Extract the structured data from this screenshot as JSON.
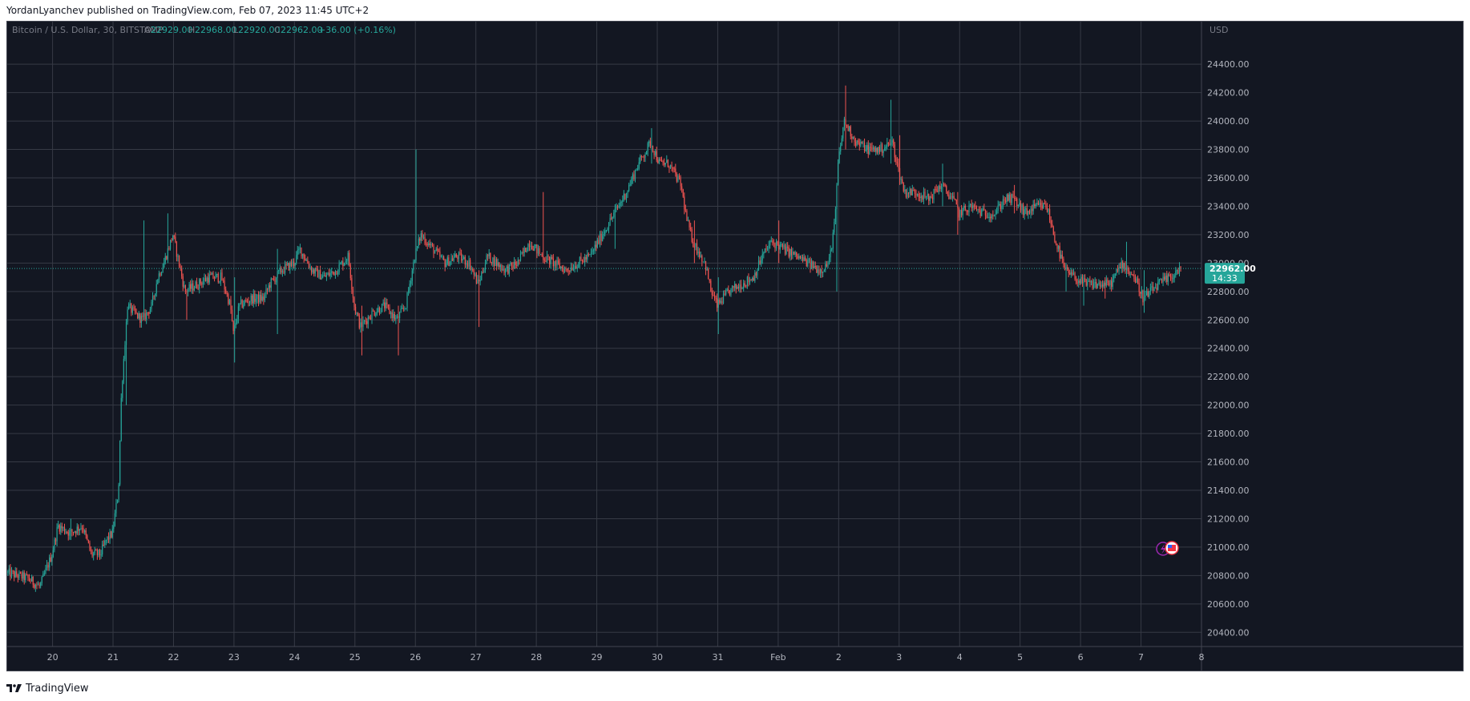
{
  "header": {
    "published_line": "YordanLyanchev published on TradingView.com, Feb 07, 2023 11:45 UTC+2"
  },
  "footer": {
    "brand": "TradingView"
  },
  "legend": {
    "symbol": "Bitcoin / U.S. Dollar, 30, BITSTAMP",
    "open_label": "O",
    "open": "22929.00",
    "high_label": "H",
    "high": "22968.00",
    "low_label": "L",
    "low": "22920.00",
    "close_label": "C",
    "close": "22962.00",
    "change": "+36.00 (+0.16%)"
  },
  "price_scale": {
    "currency": "USD",
    "last_price": "22962.00",
    "countdown": "14:33"
  },
  "colors": {
    "background": "#131722",
    "grid": "#363a45",
    "up": "#26a69a",
    "down": "#ef5350",
    "text": "#b2b5be",
    "badge": "#26a69a"
  },
  "chart_data": {
    "type": "candlestick",
    "title": "Bitcoin / U.S. Dollar, 30, BITSTAMP",
    "ylabel": "USD",
    "ylim": [
      20300,
      24700
    ],
    "y_ticks": [
      20400,
      20600,
      20800,
      21000,
      21200,
      21400,
      21600,
      21800,
      22000,
      22200,
      22400,
      22600,
      22800,
      23000,
      23200,
      23400,
      23600,
      23800,
      24000,
      24200,
      24400
    ],
    "y_tick_labels": [
      "20400.00",
      "20600.00",
      "20800.00",
      "21000.00",
      "21200.00",
      "21400.00",
      "21600.00",
      "21800.00",
      "22000.00",
      "22200.00",
      "22400.00",
      "22600.00",
      "22800.00",
      "23000.00",
      "23200.00",
      "23400.00",
      "23600.00",
      "23800.00",
      "24000.00",
      "24200.00",
      "24400.00"
    ],
    "x_range": [
      -0.75,
      19.0
    ],
    "x_ticks": [
      0,
      1,
      2,
      3,
      4,
      5,
      6,
      7,
      8,
      9,
      10,
      11,
      12,
      13,
      14,
      15,
      16,
      17,
      18,
      19
    ],
    "x_tick_labels": [
      "20",
      "21",
      "22",
      "23",
      "24",
      "25",
      "26",
      "27",
      "28",
      "29",
      "30",
      "31",
      "Feb",
      "2",
      "3",
      "4",
      "5",
      "6",
      "7",
      "8"
    ],
    "grid": true,
    "last_price": 22962.0,
    "path": [
      [
        -0.75,
        20820
      ],
      [
        -0.4,
        20780
      ],
      [
        -0.2,
        20720
      ],
      [
        0.0,
        20950
      ],
      [
        0.1,
        21150
      ],
      [
        0.3,
        21100
      ],
      [
        0.5,
        21150
      ],
      [
        0.65,
        20950
      ],
      [
        0.8,
        20950
      ],
      [
        0.9,
        21050
      ],
      [
        1.0,
        21100
      ],
      [
        1.1,
        21400
      ],
      [
        1.15,
        22100
      ],
      [
        1.25,
        22700
      ],
      [
        1.35,
        22650
      ],
      [
        1.5,
        22600
      ],
      [
        1.65,
        22700
      ],
      [
        1.75,
        22900
      ],
      [
        1.85,
        23000
      ],
      [
        2.0,
        23200
      ],
      [
        2.1,
        23000
      ],
      [
        2.2,
        22800
      ],
      [
        2.4,
        22850
      ],
      [
        2.6,
        22900
      ],
      [
        2.8,
        22900
      ],
      [
        2.95,
        22700
      ],
      [
        3.0,
        22500
      ],
      [
        3.1,
        22700
      ],
      [
        3.3,
        22750
      ],
      [
        3.5,
        22750
      ],
      [
        3.6,
        22850
      ],
      [
        3.8,
        22950
      ],
      [
        4.0,
        23000
      ],
      [
        4.1,
        23100
      ],
      [
        4.3,
        22950
      ],
      [
        4.5,
        22900
      ],
      [
        4.7,
        22950
      ],
      [
        4.9,
        23050
      ],
      [
        5.0,
        22700
      ],
      [
        5.1,
        22550
      ],
      [
        5.3,
        22650
      ],
      [
        5.5,
        22700
      ],
      [
        5.7,
        22600
      ],
      [
        5.85,
        22700
      ],
      [
        6.0,
        23050
      ],
      [
        6.1,
        23200
      ],
      [
        6.3,
        23100
      ],
      [
        6.5,
        23000
      ],
      [
        6.7,
        23050
      ],
      [
        6.9,
        23000
      ],
      [
        7.0,
        22900
      ],
      [
        7.05,
        22850
      ],
      [
        7.2,
        23050
      ],
      [
        7.5,
        22950
      ],
      [
        7.7,
        23000
      ],
      [
        7.9,
        23150
      ],
      [
        8.1,
        23050
      ],
      [
        8.3,
        23000
      ],
      [
        8.5,
        22950
      ],
      [
        8.7,
        23000
      ],
      [
        8.9,
        23050
      ],
      [
        9.1,
        23200
      ],
      [
        9.3,
        23350
      ],
      [
        9.5,
        23500
      ],
      [
        9.7,
        23700
      ],
      [
        9.9,
        23850
      ],
      [
        10.05,
        23700
      ],
      [
        10.2,
        23700
      ],
      [
        10.4,
        23550
      ],
      [
        10.5,
        23300
      ],
      [
        10.6,
        23150
      ],
      [
        10.8,
        23000
      ],
      [
        10.9,
        22800
      ],
      [
        11.0,
        22700
      ],
      [
        11.2,
        22800
      ],
      [
        11.4,
        22850
      ],
      [
        11.6,
        22900
      ],
      [
        11.75,
        23050
      ],
      [
        11.9,
        23150
      ],
      [
        12.1,
        23100
      ],
      [
        12.3,
        23050
      ],
      [
        12.5,
        23000
      ],
      [
        12.7,
        22950
      ],
      [
        12.85,
        23000
      ],
      [
        12.95,
        23300
      ],
      [
        13.0,
        23700
      ],
      [
        13.1,
        24000
      ],
      [
        13.3,
        23850
      ],
      [
        13.5,
        23800
      ],
      [
        13.7,
        23800
      ],
      [
        13.9,
        23850
      ],
      [
        14.0,
        23650
      ],
      [
        14.1,
        23500
      ],
      [
        14.3,
        23500
      ],
      [
        14.5,
        23450
      ],
      [
        14.7,
        23550
      ],
      [
        14.9,
        23450
      ],
      [
        15.0,
        23350
      ],
      [
        15.2,
        23400
      ],
      [
        15.4,
        23350
      ],
      [
        15.6,
        23350
      ],
      [
        15.75,
        23450
      ],
      [
        15.9,
        23450
      ],
      [
        16.1,
        23350
      ],
      [
        16.3,
        23400
      ],
      [
        16.45,
        23400
      ],
      [
        16.6,
        23150
      ],
      [
        16.75,
        22950
      ],
      [
        16.9,
        22900
      ],
      [
        17.1,
        22850
      ],
      [
        17.3,
        22850
      ],
      [
        17.5,
        22850
      ],
      [
        17.7,
        23000
      ],
      [
        17.9,
        22900
      ],
      [
        18.05,
        22750
      ],
      [
        18.3,
        22850
      ],
      [
        18.5,
        22900
      ],
      [
        18.65,
        22962
      ]
    ],
    "spikes": [
      [
        0.3,
        21200,
        21050
      ],
      [
        1.2,
        22400,
        22000
      ],
      [
        1.5,
        23300,
        22600
      ],
      [
        1.9,
        23350,
        23000
      ],
      [
        2.2,
        22700,
        22600
      ],
      [
        3.0,
        22900,
        22300
      ],
      [
        3.7,
        23100,
        22500
      ],
      [
        5.1,
        22700,
        22350
      ],
      [
        5.7,
        22700,
        22350
      ],
      [
        6.0,
        23800,
        23000
      ],
      [
        7.05,
        22950,
        22550
      ],
      [
        8.1,
        23500,
        23000
      ],
      [
        9.3,
        23300,
        23100
      ],
      [
        9.9,
        23950,
        23700
      ],
      [
        10.6,
        23300,
        23000
      ],
      [
        11.0,
        22900,
        22500
      ],
      [
        12.0,
        23300,
        23000
      ],
      [
        12.95,
        23400,
        22800
      ],
      [
        13.1,
        24250,
        23800
      ],
      [
        13.85,
        24150,
        23700
      ],
      [
        14.0,
        23900,
        23550
      ],
      [
        14.7,
        23700,
        23400
      ],
      [
        14.95,
        23500,
        23200
      ],
      [
        15.9,
        23550,
        23350
      ],
      [
        16.75,
        23000,
        22800
      ],
      [
        17.05,
        22800,
        22700
      ],
      [
        17.4,
        22900,
        22750
      ],
      [
        17.75,
        23150,
        22900
      ],
      [
        18.05,
        22950,
        22650
      ]
    ]
  }
}
